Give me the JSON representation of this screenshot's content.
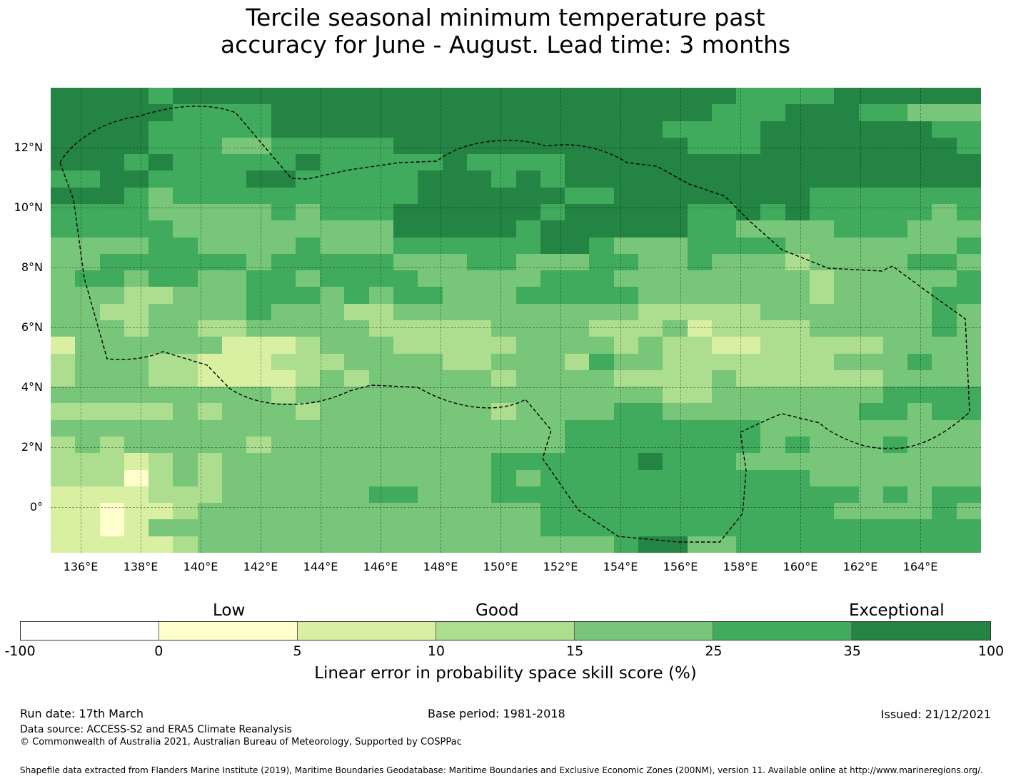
{
  "title_line1": "Tercile seasonal minimum temperature past",
  "title_line2": "accuracy for June - August. Lead time: 3 months",
  "map": {
    "x_ticks": [
      "136°E",
      "138°E",
      "140°E",
      "142°E",
      "144°E",
      "146°E",
      "148°E",
      "150°E",
      "152°E",
      "154°E",
      "156°E",
      "158°E",
      "160°E",
      "162°E",
      "164°E"
    ],
    "y_ticks": [
      "12°N",
      "10°N",
      "8°N",
      "6°N",
      "4°N",
      "2°N",
      "0°"
    ],
    "color_levels": [
      "#ffffff",
      "#ffffcc",
      "#d9f0a3",
      "#addd8e",
      "#78c679",
      "#41ab5d",
      "#238443"
    ],
    "cells": [
      "66665666666666666666666666665555666666",
      "66666555566666666666666666655566655444",
      "66665555566666666666666665555666666655",
      "66665554455555666666666666555666666665",
      "66656555556555556555566666666666666666",
      "55665555665555566656566666666666666666",
      "66654555555555566666655666666665555555",
      "55554444454555666666566666556565555545",
      "55555444444444666665666666554444555444",
      "44445544445444555555665444555544444445",
      "44555555455555444554445544544434444554",
      "45545544554555544444555444444443444445",
      "44433444555454554445555544444443444455",
      "44334444544433444444444433333444444454",
      "44434433444443333344443334233334444454",
      "24444442223444333334444343322333334444",
      "34443322233344443344435443333333444544",
      "34443322223434444434444333343333334444",
      "44444444434444444444444443344444445555",
      "33333434443444444434444554444444455455",
      "44444444444444444444455555555444444444",
      "34344444344444444444455555555454445444",
      "33323434444444444455555565554444444444",
      "33313434444444444454555555555554444444",
      "22223334444445544455555555555555545455",
      "22122344444444444444555555555555444454",
      "22124444444444444444555555555555555555",
      "22222344444444444444444566445555555555"
    ]
  },
  "colorbar": {
    "category_labels": [
      "Low",
      "Good",
      "Exceptional"
    ],
    "ticks": [
      "-100",
      "0",
      "5",
      "10",
      "15",
      "25",
      "35",
      "100"
    ],
    "label": "Linear error in probability space skill score (%)"
  },
  "footer": {
    "run_date": "Run date: 17th March",
    "base_period": "Base period: 1981-2018",
    "issued": "Issued: 21/12/2021",
    "data_source": "Data source: ACCESS-S2 and ERA5 Climate Reanalysis",
    "copyright": "© Commonwealth of Australia 2021, Australian Bureau of Meteorology, Supported by COSPPac",
    "shapefile": "Shapefile data extracted from Flanders Marine Institute (2019), Maritime Boundaries Geodatabase: Maritime Boundaries and Exclusive Economic Zones (200NM), version 11. Available online at http://www.marineregions.org/."
  }
}
